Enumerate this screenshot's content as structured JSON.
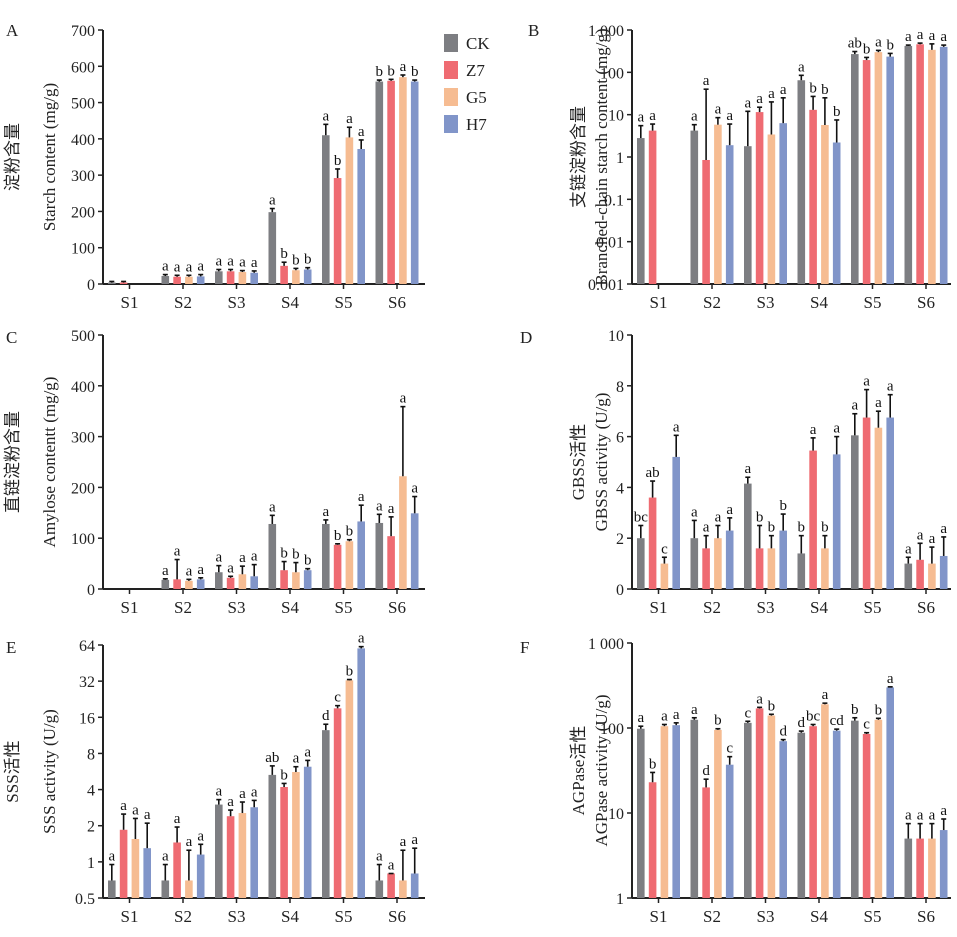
{
  "legend": {
    "items": [
      {
        "name": "CK",
        "color": "#7d7e82"
      },
      {
        "name": "Z7",
        "color": "#ef6b72"
      },
      {
        "name": "G5",
        "color": "#f6bc92"
      },
      {
        "name": "H7",
        "color": "#8195c9"
      }
    ]
  },
  "chart_data": [
    {
      "panel": "A",
      "type": "bar",
      "ylabel_cn": "淀粉含量",
      "ylabel": "Starch content (mg/g)",
      "scale": "linear",
      "ylim": [
        0,
        700
      ],
      "yticks": [
        0,
        100,
        200,
        300,
        400,
        500,
        600,
        700
      ],
      "ytick_labels": [
        "0",
        "100",
        "200",
        "300",
        "400",
        "500",
        "600",
        "700"
      ],
      "categories": [
        "S1",
        "S2",
        "S3",
        "S4",
        "S5",
        "S6"
      ],
      "series": [
        {
          "name": "CK",
          "values": [
            4,
            22,
            35,
            198,
            410,
            558
          ],
          "errors": [
            3,
            4,
            5,
            10,
            30,
            4
          ],
          "letters": [
            "",
            "a",
            "a",
            "a",
            "a",
            "b"
          ]
        },
        {
          "name": "Z7",
          "values": [
            4,
            20,
            35,
            50,
            292,
            560
          ],
          "errors": [
            3,
            4,
            5,
            10,
            25,
            4
          ],
          "letters": [
            "",
            "a",
            "a",
            "b",
            "b",
            "b"
          ]
        },
        {
          "name": "G5",
          "values": [
            0,
            20,
            33,
            38,
            404,
            570
          ],
          "errors": [
            0,
            4,
            4,
            5,
            28,
            6
          ],
          "letters": [
            "",
            "a",
            "a",
            "b",
            "a",
            "a"
          ]
        },
        {
          "name": "H7",
          "values": [
            0,
            21,
            31,
            40,
            372,
            558
          ],
          "errors": [
            0,
            5,
            5,
            5,
            25,
            4
          ],
          "letters": [
            "",
            "a",
            "a",
            "b",
            "a",
            "b"
          ]
        }
      ],
      "letter_overrides": {
        "S5": [
          "a",
          "b",
          "a",
          "a"
        ]
      }
    },
    {
      "panel": "B",
      "type": "bar",
      "ylabel_cn": "支链淀粉含量",
      "ylabel": "Branched-chain starch content (mg/g)",
      "scale": "log10",
      "ylim": [
        0.001,
        1000
      ],
      "yticks": [
        0.001,
        0.01,
        0.1,
        1,
        10,
        100,
        1000
      ],
      "ytick_labels": [
        "0.001",
        "0.01",
        "0.1",
        "1",
        "10",
        "100",
        "1 000"
      ],
      "categories": [
        "S1",
        "S2",
        "S3",
        "S4",
        "S5",
        "S6"
      ],
      "series": [
        {
          "name": "CK",
          "values": [
            2.8,
            4.2,
            1.8,
            65,
            270,
            420
          ],
          "errors_top": [
            5.5,
            5.8,
            12,
            85,
            310,
            440
          ],
          "letters": [
            "a",
            "a",
            "a",
            "a",
            "ab",
            "a"
          ]
        },
        {
          "name": "Z7",
          "values": [
            4.2,
            0.85,
            11.5,
            13,
            195,
            460
          ],
          "errors_top": [
            6,
            40,
            15,
            27,
            225,
            490
          ],
          "letters": [
            "a",
            "a",
            "a",
            "b",
            "b",
            "a"
          ]
        },
        {
          "name": "G5",
          "values": [
            null,
            5.8,
            3.4,
            5.7,
            300,
            340
          ],
          "errors_top": [
            null,
            8.5,
            20,
            25,
            330,
            470
          ],
          "letters": [
            "",
            "a",
            "a",
            "b",
            "a",
            "a"
          ]
        },
        {
          "name": "H7",
          "values": [
            null,
            1.9,
            6.3,
            2.2,
            235,
            400
          ],
          "errors_top": [
            null,
            6,
            25,
            7.5,
            280,
            440
          ],
          "letters": [
            "",
            "a",
            "a",
            "b",
            "b",
            "a"
          ]
        }
      ]
    },
    {
      "panel": "C",
      "type": "bar",
      "ylabel_cn": "直链淀粉含量",
      "ylabel": "Amylose contentt (mg/g)",
      "scale": "linear",
      "ylim": [
        0,
        500
      ],
      "yticks": [
        0,
        100,
        200,
        300,
        400,
        500
      ],
      "ytick_labels": [
        "0",
        "100",
        "200",
        "300",
        "400",
        "500"
      ],
      "categories": [
        "S1",
        "S2",
        "S3",
        "S4",
        "S5",
        "S6"
      ],
      "series": [
        {
          "name": "CK",
          "values": [
            0,
            18,
            33,
            128,
            128,
            130
          ],
          "errors": [
            0,
            2,
            13,
            17,
            8,
            17
          ],
          "letters": [
            "",
            "a",
            "a",
            "a",
            "a",
            "a"
          ]
        },
        {
          "name": "Z7",
          "values": [
            0,
            19,
            22,
            37,
            87,
            104
          ],
          "errors": [
            0,
            39,
            3,
            17,
            2,
            38
          ],
          "letters": [
            "",
            "a",
            "a",
            "b",
            "b",
            "a"
          ]
        },
        {
          "name": "G5",
          "values": [
            0,
            16,
            29,
            33,
            94,
            222
          ],
          "errors": [
            0,
            3,
            16,
            19,
            3,
            137
          ],
          "letters": [
            "",
            "a",
            "a",
            "b",
            "b",
            "a"
          ]
        },
        {
          "name": "H7",
          "values": [
            0,
            19,
            25,
            37,
            133,
            149
          ],
          "errors": [
            0,
            3,
            23,
            3,
            32,
            33
          ],
          "letters": [
            "",
            "a",
            "a",
            "b",
            "a",
            "a"
          ]
        }
      ]
    },
    {
      "panel": "D",
      "type": "bar",
      "ylabel_cn": "GBSS活性",
      "ylabel": "GBSS activity (U/g)",
      "scale": "linear",
      "ylim": [
        0,
        10
      ],
      "yticks": [
        0,
        2,
        4,
        6,
        8,
        10
      ],
      "ytick_labels": [
        "0",
        "2",
        "4",
        "6",
        "8",
        "10"
      ],
      "categories": [
        "S1",
        "S2",
        "S3",
        "S4",
        "S5",
        "S6"
      ],
      "series": [
        {
          "name": "CK",
          "values": [
            2.0,
            2.0,
            4.15,
            1.4,
            6.05,
            1.0
          ],
          "errors": [
            0.5,
            0.7,
            0.25,
            0.7,
            0.85,
            0.25
          ],
          "letters": [
            "bc",
            "a",
            "a",
            "b",
            "a",
            "a"
          ]
        },
        {
          "name": "Z7",
          "values": [
            3.6,
            1.6,
            1.6,
            5.45,
            6.75,
            1.15
          ],
          "errors": [
            0.65,
            0.5,
            0.9,
            0.5,
            1.1,
            0.65
          ],
          "letters": [
            "ab",
            "a",
            "b",
            "a",
            "a",
            "a"
          ]
        },
        {
          "name": "G5",
          "values": [
            1.0,
            2.0,
            1.6,
            1.6,
            6.35,
            1.0
          ],
          "errors": [
            0.25,
            0.5,
            0.5,
            0.5,
            0.65,
            0.65
          ],
          "letters": [
            "c",
            "a",
            "b",
            "b",
            "a",
            "a"
          ]
        },
        {
          "name": "H7",
          "values": [
            5.2,
            2.3,
            2.3,
            5.3,
            6.75,
            1.3
          ],
          "errors": [
            0.85,
            0.5,
            0.65,
            0.7,
            0.9,
            0.75
          ],
          "letters": [
            "a",
            "a",
            "b",
            "a",
            "a",
            "a"
          ]
        }
      ]
    },
    {
      "panel": "E",
      "type": "bar",
      "ylabel_cn": "SSS活性",
      "ylabel": "SSS activity (U/g)",
      "scale": "log2",
      "ylim": [
        0.5,
        64
      ],
      "yticks": [
        0.5,
        1,
        2,
        4,
        8,
        16,
        32,
        64
      ],
      "ytick_labels": [
        "0.5",
        "1",
        "2",
        "4",
        "8",
        "16",
        "32",
        "64"
      ],
      "categories": [
        "S1",
        "S2",
        "S3",
        "S4",
        "S5",
        "S6"
      ],
      "series": [
        {
          "name": "CK",
          "values": [
            0.7,
            0.7,
            3.0,
            5.3,
            12.5,
            0.7
          ],
          "errors_top": [
            0.95,
            0.95,
            3.3,
            6.3,
            14.0,
            0.95
          ],
          "letters": [
            "a",
            "a",
            "a",
            "ab",
            "d",
            "a"
          ]
        },
        {
          "name": "Z7",
          "values": [
            1.85,
            1.45,
            2.4,
            4.2,
            19.0,
            0.8
          ],
          "errors_top": [
            2.5,
            1.95,
            2.7,
            4.5,
            20.0,
            0.8
          ],
          "letters": [
            "a",
            "a",
            "a",
            "b",
            "c",
            "a"
          ]
        },
        {
          "name": "G5",
          "values": [
            1.55,
            0.7,
            2.55,
            5.6,
            32.5,
            0.7
          ],
          "errors_top": [
            2.3,
            1.25,
            3.15,
            6.2,
            33.0,
            1.25
          ],
          "letters": [
            "a",
            "a",
            "a",
            "a",
            "b",
            "a"
          ]
        },
        {
          "name": "H7",
          "values": [
            1.3,
            1.15,
            2.85,
            6.2,
            60,
            0.8
          ],
          "errors_top": [
            2.1,
            1.4,
            3.25,
            7.0,
            62,
            1.3
          ],
          "letters": [
            "a",
            "a",
            "a",
            "a",
            "a",
            "a"
          ]
        }
      ]
    },
    {
      "panel": "F",
      "type": "bar",
      "ylabel_cn": "AGPase活性",
      "ylabel": "AGPase activity (U/g)",
      "scale": "log10",
      "ylim": [
        1,
        1000
      ],
      "yticks": [
        1,
        10,
        100,
        1000
      ],
      "ytick_labels": [
        "1",
        "10",
        "100",
        "1 000"
      ],
      "categories": [
        "S1",
        "S2",
        "S3",
        "S4",
        "S5",
        "S6"
      ],
      "series": [
        {
          "name": "CK",
          "values": [
            98,
            125,
            115,
            88,
            122,
            5
          ],
          "errors_top": [
            105,
            132,
            120,
            92,
            132,
            7.5
          ],
          "letters": [
            "a",
            "a",
            "c",
            "d",
            "b",
            "a"
          ]
        },
        {
          "name": "Z7",
          "values": [
            23,
            20,
            170,
            105,
            85,
            5
          ],
          "errors_top": [
            30,
            25,
            175,
            110,
            88,
            7.5
          ],
          "letters": [
            "b",
            "d",
            "a",
            "bc",
            "c",
            "a"
          ]
        },
        {
          "name": "G5",
          "values": [
            105,
            95,
            140,
            190,
            125,
            5
          ],
          "errors_top": [
            110,
            98,
            145,
            196,
            130,
            7.5
          ],
          "letters": [
            "a",
            "b",
            "b",
            "a",
            "b",
            "a"
          ]
        },
        {
          "name": "H7",
          "values": [
            108,
            37,
            70,
            93,
            300,
            6.3
          ],
          "errors_top": [
            115,
            46,
            73,
            97,
            305,
            8.5
          ],
          "letters": [
            "a",
            "c",
            "d",
            "cd",
            "a",
            "a"
          ]
        }
      ]
    }
  ]
}
